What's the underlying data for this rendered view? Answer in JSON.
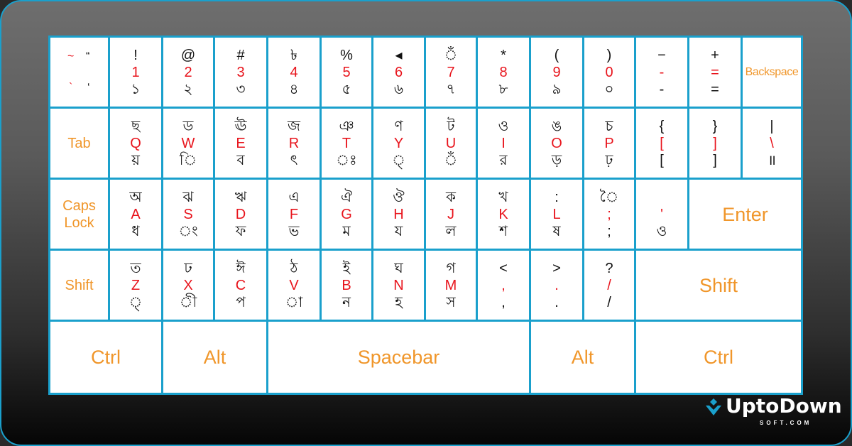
{
  "colors": {
    "key_border": "#1aa0cc",
    "primary_char": "#e8141c",
    "function_label": "#f0962a",
    "bangla_char": "#111111"
  },
  "keyboard": {
    "rows": [
      [
        {
          "id": "tilde",
          "tl": "~",
          "tr": "“",
          "bl": "`",
          "br": "‘"
        },
        {
          "id": "1",
          "t": "!",
          "m": "1",
          "b": "১"
        },
        {
          "id": "2",
          "t": "@",
          "m": "2",
          "b": "২"
        },
        {
          "id": "3",
          "t": "#",
          "m": "3",
          "b": "৩"
        },
        {
          "id": "4",
          "t": "৳",
          "m": "4",
          "b": "৪"
        },
        {
          "id": "5",
          "t": "%",
          "m": "5",
          "b": "৫"
        },
        {
          "id": "6",
          "t": "◂",
          "m": "6",
          "b": "৬"
        },
        {
          "id": "7",
          "t": "ঁ",
          "m": "7",
          "b": "৭"
        },
        {
          "id": "8",
          "t": "*",
          "m": "8",
          "b": "৮"
        },
        {
          "id": "9",
          "t": "(",
          "m": "9",
          "b": "৯"
        },
        {
          "id": "0",
          "t": ")",
          "m": "0",
          "b": "০"
        },
        {
          "id": "minus",
          "t": "−",
          "m": "-",
          "b": "-"
        },
        {
          "id": "equals",
          "t": "+",
          "m": "=",
          "b": "="
        },
        {
          "id": "backspace",
          "label": "Backspace"
        }
      ],
      [
        {
          "id": "tab",
          "label": "Tab"
        },
        {
          "id": "q",
          "t": "ছ",
          "m": "Q",
          "b": "য়"
        },
        {
          "id": "w",
          "t": "ড",
          "m": "W",
          "b": "ি"
        },
        {
          "id": "e",
          "t": "ঊ",
          "m": "E",
          "b": "ব"
        },
        {
          "id": "r",
          "t": "জ",
          "m": "R",
          "b": "ৎ"
        },
        {
          "id": "t",
          "t": "ঞ",
          "m": "T",
          "b": "ঃ"
        },
        {
          "id": "y",
          "t": "ণ",
          "m": "Y",
          "b": "্"
        },
        {
          "id": "u",
          "t": "ট",
          "m": "U",
          "b": "ঁ"
        },
        {
          "id": "i",
          "t": "ও",
          "m": "I",
          "b": "র"
        },
        {
          "id": "o",
          "t": "ঙ",
          "m": "O",
          "b": "ড়"
        },
        {
          "id": "p",
          "t": "চ",
          "m": "P",
          "b": "ঢ়"
        },
        {
          "id": "lbracket",
          "t": "{",
          "m": "[",
          "b": "["
        },
        {
          "id": "rbracket",
          "t": "}",
          "m": "]",
          "b": "]"
        },
        {
          "id": "backslash",
          "t": "|",
          "m": "\\",
          "b": "॥"
        }
      ],
      [
        {
          "id": "capslock",
          "label": "Caps Lock"
        },
        {
          "id": "a",
          "t": "অ",
          "m": "A",
          "b": "ধ"
        },
        {
          "id": "s",
          "t": "ঝ",
          "m": "S",
          "b": "ং"
        },
        {
          "id": "d",
          "t": "ঋ",
          "m": "D",
          "b": "ফ"
        },
        {
          "id": "f",
          "t": "এ",
          "m": "F",
          "b": "ভ"
        },
        {
          "id": "g",
          "t": "ঐ",
          "m": "G",
          "b": "ম"
        },
        {
          "id": "h",
          "t": "ঔ",
          "m": "H",
          "b": "য"
        },
        {
          "id": "j",
          "t": "ক",
          "m": "J",
          "b": "ল"
        },
        {
          "id": "k",
          "t": "খ",
          "m": "K",
          "b": "শ"
        },
        {
          "id": "l",
          "t": ":",
          "m": "L",
          "b": "ষ"
        },
        {
          "id": "semicolon",
          "t": "ৈ",
          "m": ";",
          "b": ";"
        },
        {
          "id": "quote",
          "t": "",
          "m": "'",
          "b": "ও"
        },
        {
          "id": "enter",
          "label": "Enter"
        }
      ],
      [
        {
          "id": "lshift",
          "label": "Shift"
        },
        {
          "id": "z",
          "t": "ত",
          "m": "Z",
          "b": "্"
        },
        {
          "id": "x",
          "t": "ঢ",
          "m": "X",
          "b": "ী"
        },
        {
          "id": "c",
          "t": "ঈ",
          "m": "C",
          "b": "প"
        },
        {
          "id": "v",
          "t": "ঠ",
          "m": "V",
          "b": "া"
        },
        {
          "id": "b",
          "t": "ই",
          "m": "B",
          "b": "ন"
        },
        {
          "id": "n",
          "t": "ঘ",
          "m": "N",
          "b": "হ"
        },
        {
          "id": "m",
          "t": "গ",
          "m": "M",
          "b": "স"
        },
        {
          "id": "comma",
          "t": "<",
          "m": ",",
          "b": ","
        },
        {
          "id": "period",
          "t": ">",
          "m": ".",
          "b": "."
        },
        {
          "id": "slash",
          "t": "?",
          "m": "/",
          "b": "/"
        },
        {
          "id": "rshift",
          "label": "Shift"
        }
      ],
      [
        {
          "id": "lctrl",
          "label": "Ctrl"
        },
        {
          "id": "lalt",
          "label": "Alt"
        },
        {
          "id": "spacebar",
          "label": "Spacebar"
        },
        {
          "id": "ralt",
          "label": "Alt"
        },
        {
          "id": "rctrl",
          "label": "Ctrl"
        }
      ]
    ]
  },
  "logo": {
    "name": "UptoDown",
    "sub": "SOFT.COM"
  }
}
